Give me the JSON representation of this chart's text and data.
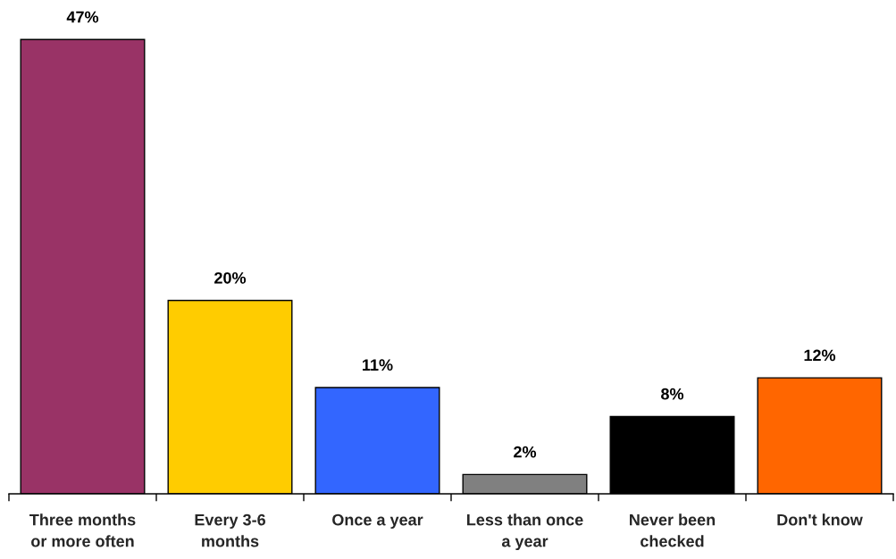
{
  "chart_data": {
    "type": "bar",
    "categories": [
      "Three months\nor more often",
      "Every 3-6\nmonths",
      "Once a year",
      "Less than once\na year",
      "Never been\nchecked",
      "Don't know"
    ],
    "values": [
      47,
      20,
      11,
      2,
      8,
      12
    ],
    "colors": [
      "#993366",
      "#ffcc00",
      "#3366ff",
      "#808080",
      "#000000",
      "#ff6600"
    ],
    "value_labels": [
      "47%",
      "20%",
      "11%",
      "2%",
      "8%",
      "12%"
    ]
  }
}
